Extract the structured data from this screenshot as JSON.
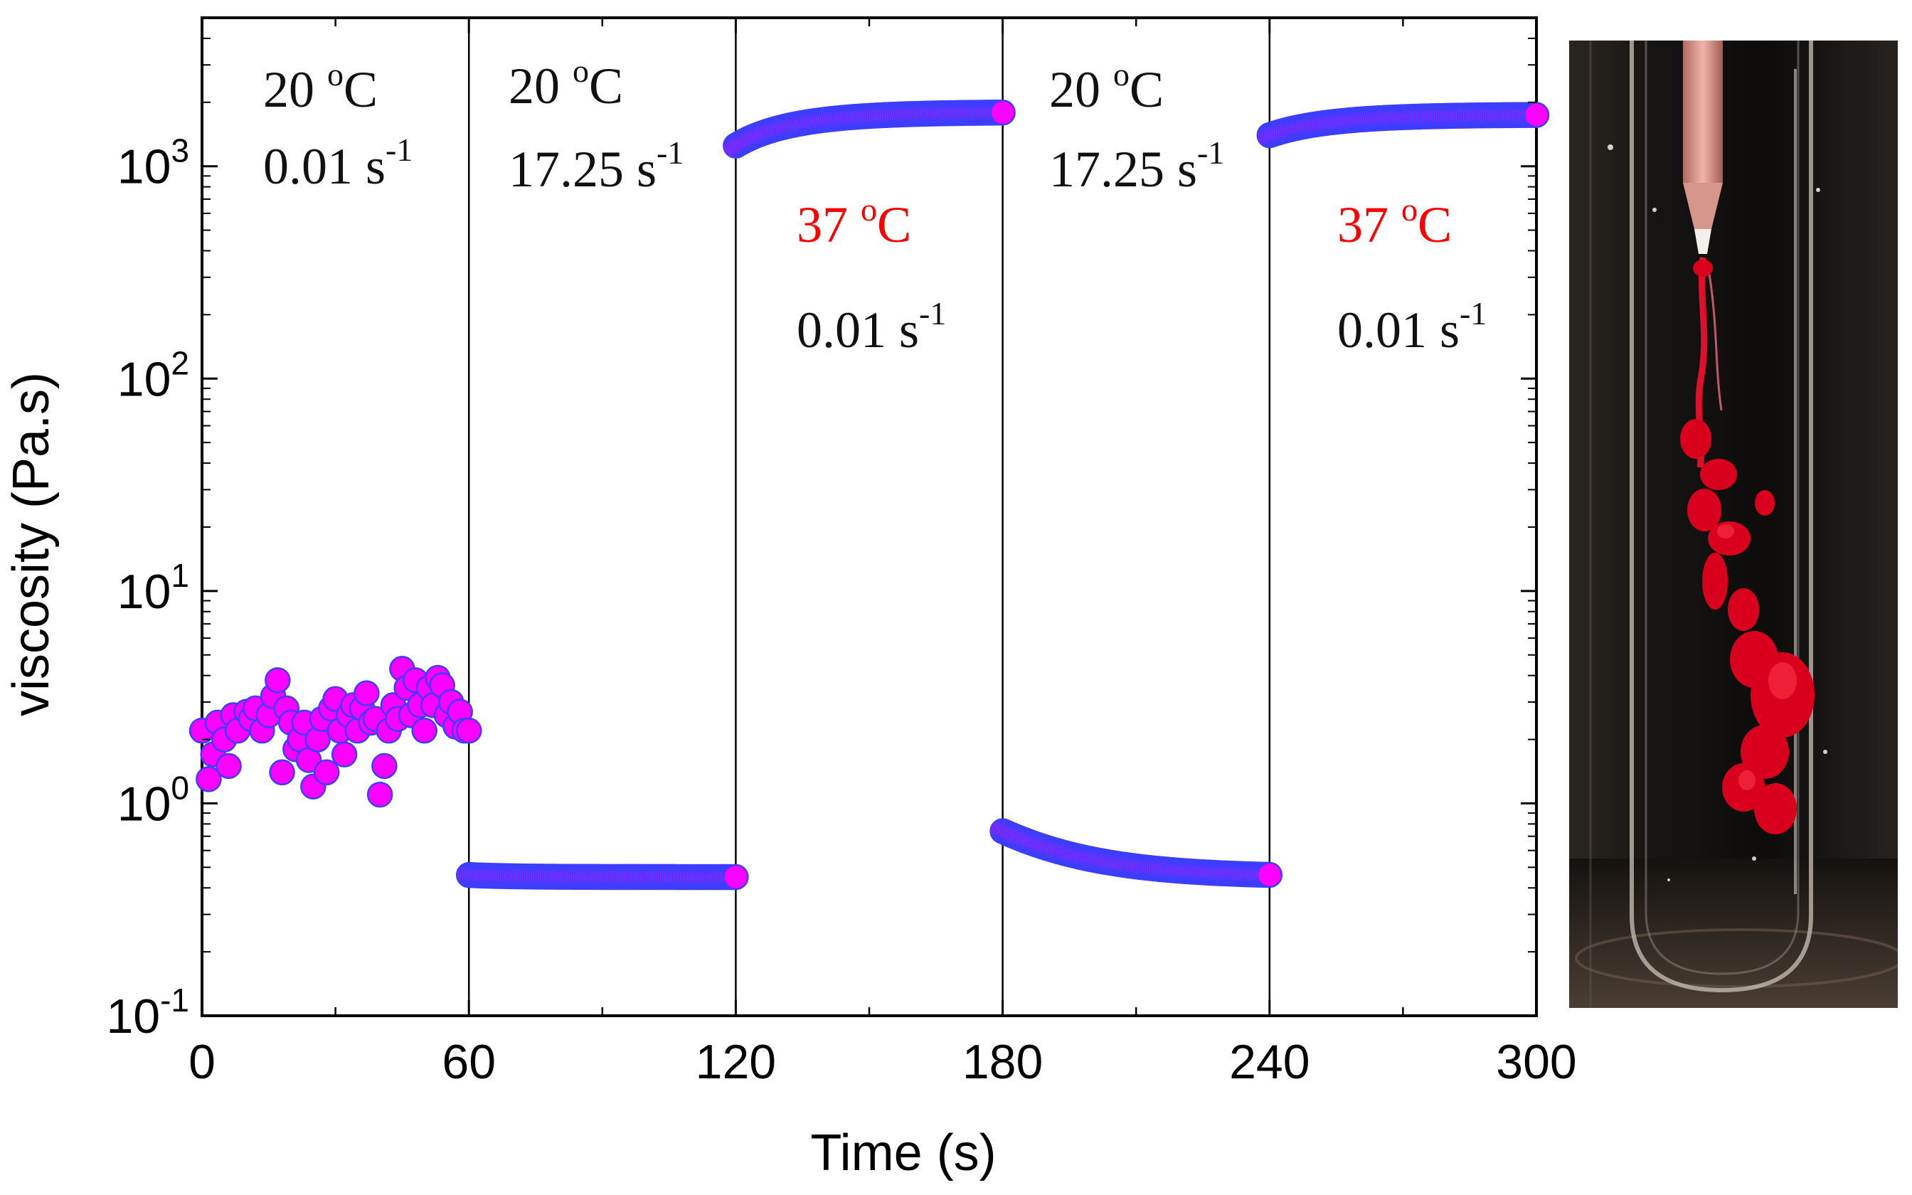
{
  "chart_data": {
    "type": "scatter",
    "xlabel": "Time (s)",
    "ylabel": "viscosity (Pa.s)",
    "xlim": [
      0,
      300
    ],
    "ylim": [
      0.1,
      5000
    ],
    "y_scale": "log",
    "x_ticks": [
      "0",
      "60",
      "120",
      "180",
      "240",
      "300"
    ],
    "y_ticks": [
      {
        "base": "10",
        "exp": "-1",
        "value": 0.1
      },
      {
        "base": "10",
        "exp": "0",
        "value": 1
      },
      {
        "base": "10",
        "exp": "1",
        "value": 10
      },
      {
        "base": "10",
        "exp": "2",
        "value": 100
      },
      {
        "base": "10",
        "exp": "3",
        "value": 1000
      }
    ],
    "dividers": [
      60,
      120,
      180,
      240
    ],
    "marker_fill": "#ff00ff",
    "marker_edge": "#3d3dff",
    "segments": [
      {
        "t_start": 0,
        "t_end": 60,
        "shear_rate": 0.01,
        "temperature": 20,
        "points": [
          [
            0,
            2.2
          ],
          [
            1.5,
            1.3
          ],
          [
            2.5,
            1.7
          ],
          [
            3.5,
            2.4
          ],
          [
            5,
            2.0
          ],
          [
            6,
            1.5
          ],
          [
            7,
            2.6
          ],
          [
            8,
            2.2
          ],
          [
            10,
            2.7
          ],
          [
            11,
            2.5
          ],
          [
            12,
            2.8
          ],
          [
            13.5,
            2.2
          ],
          [
            15,
            2.6
          ],
          [
            16,
            3.2
          ],
          [
            17,
            3.8
          ],
          [
            18,
            1.4
          ],
          [
            19,
            2.8
          ],
          [
            20,
            2.4
          ],
          [
            21,
            1.8
          ],
          [
            22,
            2.0
          ],
          [
            23,
            2.4
          ],
          [
            24,
            1.6
          ],
          [
            25,
            1.2
          ],
          [
            26,
            2.0
          ],
          [
            27,
            2.5
          ],
          [
            28,
            1.4
          ],
          [
            29,
            2.8
          ],
          [
            30,
            3.1
          ],
          [
            31,
            2.2
          ],
          [
            32,
            1.7
          ],
          [
            33,
            2.6
          ],
          [
            34,
            2.9
          ],
          [
            35,
            2.2
          ],
          [
            36,
            2.8
          ],
          [
            37,
            3.3
          ],
          [
            38,
            2.4
          ],
          [
            39,
            2.5
          ],
          [
            40,
            1.1
          ],
          [
            41,
            1.5
          ],
          [
            42,
            2.2
          ],
          [
            43,
            2.9
          ],
          [
            44,
            2.5
          ],
          [
            45,
            4.3
          ],
          [
            46,
            3.5
          ],
          [
            47,
            2.6
          ],
          [
            48,
            3.8
          ],
          [
            49,
            2.9
          ],
          [
            50,
            2.2
          ],
          [
            51,
            3.5
          ],
          [
            52,
            2.9
          ],
          [
            53,
            3.9
          ],
          [
            54,
            3.6
          ],
          [
            55,
            2.6
          ],
          [
            56,
            3.0
          ],
          [
            57,
            2.3
          ],
          [
            58,
            2.7
          ],
          [
            59,
            2.2
          ],
          [
            60,
            2.2
          ]
        ]
      },
      {
        "t_start": 60,
        "t_end": 120,
        "shear_rate": 17.25,
        "temperature": 20,
        "v_start": 0.46,
        "v_end": 0.45,
        "tau": 10
      },
      {
        "t_start": 120,
        "t_end": 180,
        "shear_rate": 0.01,
        "temperature": 37,
        "v_start": 1250,
        "v_end": 1800,
        "tau": 15
      },
      {
        "t_start": 180,
        "t_end": 240,
        "shear_rate": 17.25,
        "temperature": 20,
        "v_start": 0.74,
        "v_end": 0.45,
        "tau": 18
      },
      {
        "t_start": 240,
        "t_end": 300,
        "shear_rate": 0.01,
        "temperature": 37,
        "v_start": 1400,
        "v_end": 1750,
        "tau": 15
      }
    ]
  },
  "annotations": [
    {
      "temp_value": "20",
      "temp_unit": "C",
      "degree": "o",
      "rate_value": "0.01 s",
      "rate_exp": "-1",
      "color": "#111111"
    },
    {
      "temp_value": "20",
      "temp_unit": "C",
      "degree": "o",
      "rate_value": "17.25 s",
      "rate_exp": "-1",
      "color": "#111111"
    },
    {
      "temp_value": "37",
      "temp_unit": "C",
      "degree": "o",
      "rate_value": "0.01 s",
      "rate_exp": "-1",
      "temp_color": "#ff0000",
      "color": "#111111"
    },
    {
      "temp_value": "20",
      "temp_unit": "C",
      "degree": "o",
      "rate_value": "17.25 s",
      "rate_exp": "-1",
      "color": "#111111"
    },
    {
      "temp_value": "37",
      "temp_unit": "C",
      "degree": "o",
      "rate_value": "0.01 s",
      "rate_exp": "-1",
      "temp_color": "#ff0000",
      "color": "#111111"
    }
  ]
}
